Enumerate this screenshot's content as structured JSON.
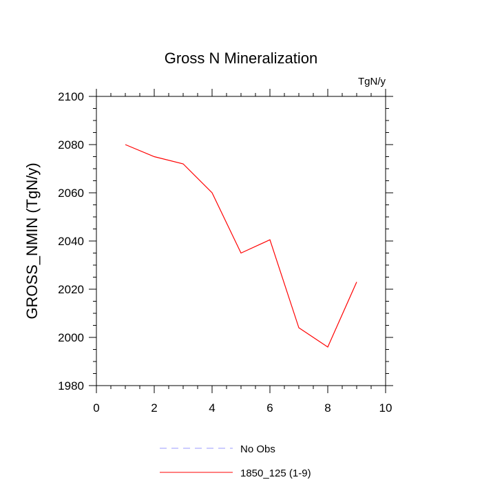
{
  "chart_data": {
    "type": "line",
    "title": "Gross N Mineralization",
    "units_label": "TgN/y",
    "ylabel": "GROSS_NMIN  (TgN/y)",
    "xlabel": "",
    "xlim": [
      0,
      10
    ],
    "ylim": [
      1980,
      2100
    ],
    "x_ticks": [
      0,
      2,
      4,
      6,
      8,
      10
    ],
    "y_ticks": [
      1980,
      2000,
      2020,
      2040,
      2060,
      2080,
      2100
    ],
    "x_minor_step": 0.5,
    "y_minor_step": 5,
    "series": [
      {
        "name": "1850_125 (1-9)",
        "color": "#ff0000",
        "dash": "solid",
        "x": [
          1,
          2,
          3,
          4,
          5,
          6,
          7,
          8,
          9
        ],
        "values": [
          2080,
          2075,
          2072,
          2060,
          2035,
          2040.5,
          2004,
          1996,
          2023
        ]
      }
    ],
    "legend": [
      {
        "label": "No Obs",
        "color": "#9999ff",
        "dash": "dashed"
      },
      {
        "label": "1850_125 (1-9)",
        "color": "#ff0000",
        "dash": "solid"
      }
    ],
    "legend_position": "bottom-center",
    "grid": false
  }
}
